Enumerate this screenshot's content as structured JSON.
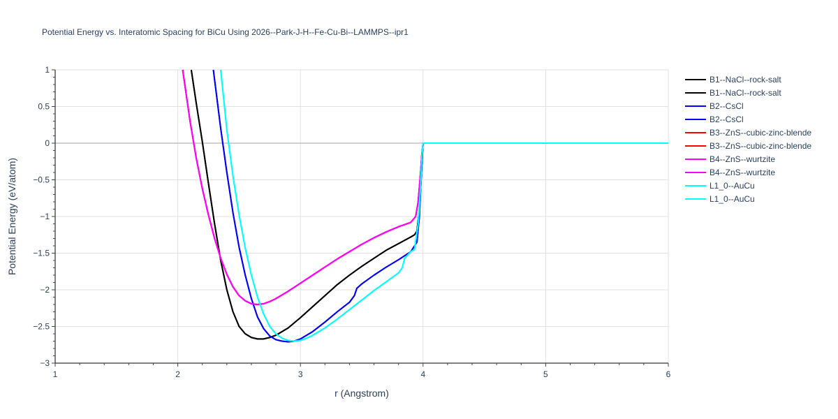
{
  "chart_data": {
    "type": "line",
    "title": "Potential Energy vs. Interatomic Spacing for BiCu Using 2026--Park-J-H--Fe-Cu-Bi--LAMMPS--ipr1",
    "xlabel": "r (Angstrom)",
    "ylabel": "Potential Energy (eV/atom)",
    "xlim": [
      1,
      6
    ],
    "ylim": [
      -3,
      1
    ],
    "x_ticks": [
      "1",
      "2",
      "3",
      "4",
      "5",
      "6"
    ],
    "y_ticks": [
      "1",
      "0.5",
      "0",
      "−0.5",
      "−1",
      "−1.5",
      "−2",
      "−2.5",
      "−3"
    ],
    "grid": true,
    "legend_position": "right",
    "series": [
      {
        "name": "B1--NaCl--rock-salt",
        "color": "#000000",
        "x": [
          2.11,
          2.15,
          2.2,
          2.25,
          2.3,
          2.35,
          2.4,
          2.45,
          2.5,
          2.55,
          2.6,
          2.65,
          2.7,
          2.75,
          2.8,
          2.9,
          3.0,
          3.1,
          3.2,
          3.3,
          3.4,
          3.5,
          3.6,
          3.7,
          3.8,
          3.9,
          3.93,
          3.95,
          3.97,
          3.99,
          4.0,
          4.5,
          5.0,
          5.5,
          6.0
        ],
        "y": [
          1.0,
          0.55,
          0.02,
          -0.55,
          -1.1,
          -1.6,
          -2.0,
          -2.3,
          -2.5,
          -2.6,
          -2.65,
          -2.67,
          -2.67,
          -2.65,
          -2.62,
          -2.52,
          -2.38,
          -2.23,
          -2.08,
          -1.93,
          -1.8,
          -1.68,
          -1.57,
          -1.46,
          -1.37,
          -1.28,
          -1.25,
          -1.2,
          -0.9,
          -0.3,
          0.0,
          0.0,
          0.0,
          0.0,
          0.0
        ]
      },
      {
        "name": "B1--NaCl--rock-salt",
        "color": "#000000",
        "x": [
          2.11,
          2.15,
          2.2,
          2.25,
          2.3,
          2.35,
          2.4,
          2.45,
          2.5,
          2.55,
          2.6,
          2.65,
          2.7,
          2.75,
          2.8,
          2.9,
          3.0,
          3.1,
          3.2,
          3.3,
          3.4,
          3.5,
          3.6,
          3.7,
          3.8,
          3.9,
          3.93,
          3.95,
          3.97,
          3.99,
          4.0,
          4.5,
          5.0,
          5.5,
          6.0
        ],
        "y": [
          1.0,
          0.55,
          0.02,
          -0.55,
          -1.1,
          -1.6,
          -2.0,
          -2.3,
          -2.5,
          -2.6,
          -2.65,
          -2.67,
          -2.67,
          -2.65,
          -2.62,
          -2.52,
          -2.38,
          -2.23,
          -2.08,
          -1.93,
          -1.8,
          -1.68,
          -1.57,
          -1.46,
          -1.37,
          -1.28,
          -1.25,
          -1.2,
          -0.9,
          -0.3,
          0.0,
          0.0,
          0.0,
          0.0,
          0.0
        ]
      },
      {
        "name": "B2--CsCl",
        "color": "#0000ff",
        "x": [
          2.29,
          2.35,
          2.4,
          2.45,
          2.5,
          2.55,
          2.6,
          2.65,
          2.7,
          2.75,
          2.8,
          2.85,
          2.9,
          2.95,
          3.0,
          3.1,
          3.2,
          3.3,
          3.4,
          3.44,
          3.46,
          3.5,
          3.6,
          3.7,
          3.8,
          3.9,
          3.95,
          3.97,
          3.99,
          4.0,
          4.5,
          5.0,
          5.5,
          6.0
        ],
        "y": [
          1.0,
          0.2,
          -0.4,
          -0.95,
          -1.42,
          -1.8,
          -2.12,
          -2.37,
          -2.53,
          -2.63,
          -2.68,
          -2.7,
          -2.71,
          -2.7,
          -2.67,
          -2.57,
          -2.44,
          -2.3,
          -2.17,
          -2.08,
          -1.98,
          -1.92,
          -1.8,
          -1.69,
          -1.59,
          -1.48,
          -1.35,
          -1.0,
          -0.3,
          0.0,
          0.0,
          0.0,
          0.0,
          0.0
        ]
      },
      {
        "name": "B2--CsCl",
        "color": "#0000ff",
        "x": [
          2.29,
          2.35,
          2.4,
          2.45,
          2.5,
          2.55,
          2.6,
          2.65,
          2.7,
          2.75,
          2.8,
          2.85,
          2.9,
          2.95,
          3.0,
          3.1,
          3.2,
          3.3,
          3.4,
          3.44,
          3.46,
          3.5,
          3.6,
          3.7,
          3.8,
          3.9,
          3.95,
          3.97,
          3.99,
          4.0,
          4.5,
          5.0,
          5.5,
          6.0
        ],
        "y": [
          1.0,
          0.2,
          -0.4,
          -0.95,
          -1.42,
          -1.8,
          -2.12,
          -2.37,
          -2.53,
          -2.63,
          -2.68,
          -2.7,
          -2.71,
          -2.7,
          -2.67,
          -2.57,
          -2.44,
          -2.3,
          -2.17,
          -2.08,
          -1.98,
          -1.92,
          -1.8,
          -1.69,
          -1.59,
          -1.48,
          -1.35,
          -1.0,
          -0.3,
          0.0,
          0.0,
          0.0,
          0.0,
          0.0
        ]
      },
      {
        "name": "B3--ZnS--cubic-zinc-blende",
        "color": "#ff0000",
        "x": [
          2.04,
          2.1,
          2.15,
          2.2,
          2.25,
          2.3,
          2.35,
          2.4,
          2.45,
          2.5,
          2.55,
          2.6,
          2.65,
          2.7,
          2.75,
          2.8,
          2.9,
          3.0,
          3.1,
          3.2,
          3.3,
          3.4,
          3.5,
          3.6,
          3.7,
          3.8,
          3.9,
          3.94,
          3.96,
          3.98,
          3.99,
          4.0,
          4.5,
          5.0,
          5.5,
          6.0
        ],
        "y": [
          1.0,
          0.3,
          -0.2,
          -0.62,
          -0.98,
          -1.3,
          -1.57,
          -1.79,
          -1.96,
          -2.08,
          -2.15,
          -2.19,
          -2.2,
          -2.19,
          -2.16,
          -2.12,
          -2.02,
          -1.91,
          -1.8,
          -1.69,
          -1.58,
          -1.48,
          -1.38,
          -1.29,
          -1.21,
          -1.14,
          -1.08,
          -1.0,
          -0.8,
          -0.4,
          -0.15,
          0.0,
          0.0,
          0.0,
          0.0,
          0.0
        ]
      },
      {
        "name": "B3--ZnS--cubic-zinc-blende",
        "color": "#ff0000",
        "x": [
          2.04,
          2.1,
          2.15,
          2.2,
          2.25,
          2.3,
          2.35,
          2.4,
          2.45,
          2.5,
          2.55,
          2.6,
          2.65,
          2.7,
          2.75,
          2.8,
          2.9,
          3.0,
          3.1,
          3.2,
          3.3,
          3.4,
          3.5,
          3.6,
          3.7,
          3.8,
          3.9,
          3.94,
          3.96,
          3.98,
          3.99,
          4.0,
          4.5,
          5.0,
          5.5,
          6.0
        ],
        "y": [
          1.0,
          0.3,
          -0.2,
          -0.62,
          -0.98,
          -1.3,
          -1.57,
          -1.79,
          -1.96,
          -2.08,
          -2.15,
          -2.19,
          -2.2,
          -2.19,
          -2.16,
          -2.12,
          -2.02,
          -1.91,
          -1.8,
          -1.69,
          -1.58,
          -1.48,
          -1.38,
          -1.29,
          -1.21,
          -1.14,
          -1.08,
          -1.0,
          -0.8,
          -0.4,
          -0.15,
          0.0,
          0.0,
          0.0,
          0.0,
          0.0
        ]
      },
      {
        "name": "B4--ZnS--wurtzite",
        "color": "#ff00ff",
        "x": [
          2.04,
          2.1,
          2.15,
          2.2,
          2.25,
          2.3,
          2.35,
          2.4,
          2.45,
          2.5,
          2.55,
          2.6,
          2.65,
          2.7,
          2.75,
          2.8,
          2.9,
          3.0,
          3.1,
          3.2,
          3.3,
          3.4,
          3.5,
          3.6,
          3.7,
          3.8,
          3.9,
          3.94,
          3.96,
          3.98,
          3.99,
          4.0,
          4.5,
          5.0,
          5.5,
          6.0
        ],
        "y": [
          1.0,
          0.3,
          -0.2,
          -0.62,
          -0.98,
          -1.3,
          -1.57,
          -1.79,
          -1.96,
          -2.08,
          -2.15,
          -2.19,
          -2.2,
          -2.19,
          -2.16,
          -2.12,
          -2.02,
          -1.91,
          -1.8,
          -1.69,
          -1.58,
          -1.48,
          -1.38,
          -1.29,
          -1.21,
          -1.14,
          -1.08,
          -1.0,
          -0.8,
          -0.4,
          -0.15,
          0.0,
          0.0,
          0.0,
          0.0,
          0.0
        ]
      },
      {
        "name": "B4--ZnS--wurtzite",
        "color": "#ff00ff",
        "x": [
          2.04,
          2.1,
          2.15,
          2.2,
          2.25,
          2.3,
          2.35,
          2.4,
          2.45,
          2.5,
          2.55,
          2.6,
          2.65,
          2.7,
          2.75,
          2.8,
          2.9,
          3.0,
          3.1,
          3.2,
          3.3,
          3.4,
          3.5,
          3.6,
          3.7,
          3.8,
          3.9,
          3.94,
          3.96,
          3.98,
          3.99,
          4.0,
          4.5,
          5.0,
          5.5,
          6.0
        ],
        "y": [
          1.0,
          0.3,
          -0.2,
          -0.62,
          -0.98,
          -1.3,
          -1.57,
          -1.79,
          -1.96,
          -2.08,
          -2.15,
          -2.19,
          -2.2,
          -2.19,
          -2.16,
          -2.12,
          -2.02,
          -1.91,
          -1.8,
          -1.69,
          -1.58,
          -1.48,
          -1.38,
          -1.29,
          -1.21,
          -1.14,
          -1.08,
          -1.0,
          -0.8,
          -0.4,
          -0.15,
          0.0,
          0.0,
          0.0,
          0.0,
          0.0
        ]
      },
      {
        "name": "L1_0--AuCu",
        "color": "#00ffff",
        "x": [
          2.35,
          2.4,
          2.45,
          2.5,
          2.55,
          2.6,
          2.65,
          2.7,
          2.75,
          2.8,
          2.85,
          2.9,
          2.95,
          3.0,
          3.05,
          3.1,
          3.2,
          3.3,
          3.4,
          3.5,
          3.6,
          3.7,
          3.8,
          3.83,
          3.85,
          3.9,
          3.93,
          3.96,
          3.98,
          3.99,
          4.0,
          4.5,
          5.0,
          5.5,
          6.0
        ],
        "y": [
          1.0,
          0.18,
          -0.45,
          -0.98,
          -1.43,
          -1.8,
          -2.1,
          -2.33,
          -2.5,
          -2.6,
          -2.66,
          -2.69,
          -2.7,
          -2.69,
          -2.66,
          -2.62,
          -2.52,
          -2.4,
          -2.27,
          -2.14,
          -2.01,
          -1.89,
          -1.77,
          -1.7,
          -1.57,
          -1.48,
          -1.45,
          -1.1,
          -0.6,
          -0.2,
          0.0,
          0.0,
          0.0,
          0.0,
          0.0
        ]
      },
      {
        "name": "L1_0--AuCu",
        "color": "#00ffff",
        "x": [
          2.35,
          2.4,
          2.45,
          2.5,
          2.55,
          2.6,
          2.65,
          2.7,
          2.75,
          2.8,
          2.85,
          2.9,
          2.95,
          3.0,
          3.05,
          3.1,
          3.2,
          3.3,
          3.4,
          3.5,
          3.6,
          3.7,
          3.8,
          3.83,
          3.85,
          3.9,
          3.93,
          3.96,
          3.98,
          3.99,
          4.0,
          4.5,
          5.0,
          5.5,
          6.0
        ],
        "y": [
          1.0,
          0.18,
          -0.45,
          -0.98,
          -1.43,
          -1.8,
          -2.1,
          -2.33,
          -2.5,
          -2.6,
          -2.66,
          -2.69,
          -2.7,
          -2.69,
          -2.66,
          -2.62,
          -2.52,
          -2.4,
          -2.27,
          -2.14,
          -2.01,
          -1.89,
          -1.77,
          -1.7,
          -1.57,
          -1.48,
          -1.45,
          -1.1,
          -0.6,
          -0.2,
          0.0,
          0.0,
          0.0,
          0.0,
          0.0
        ]
      }
    ]
  }
}
